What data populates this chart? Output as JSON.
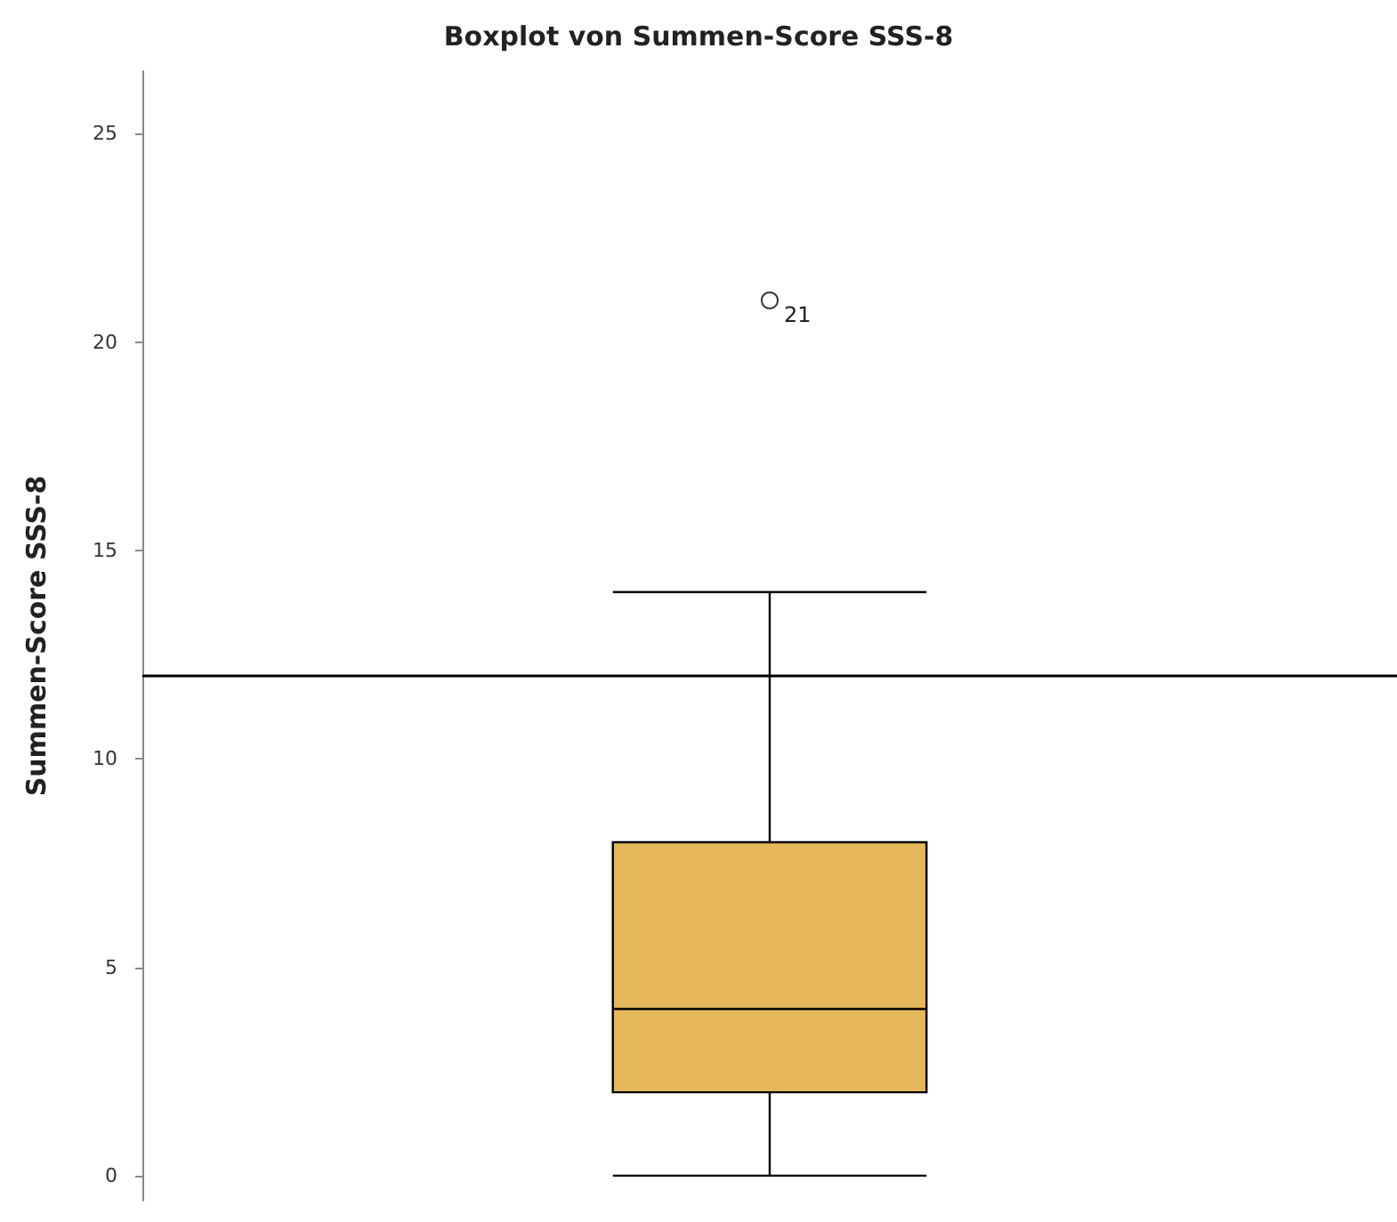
{
  "chart_data": {
    "type": "box",
    "title": "Boxplot von Summen-Score SSS-8",
    "ylabel": "Summen-Score SSS-8",
    "categories": [
      null
    ],
    "boxes": [
      {
        "low": 0,
        "q1": 2,
        "median": 4,
        "q3": 8,
        "high": 14,
        "outliers": [
          21
        ]
      }
    ],
    "color": "#e3b75a",
    "ylim": [
      -0.6,
      26.5
    ],
    "yticks": [
      0,
      5,
      10,
      15,
      20,
      25
    ],
    "grid": false,
    "ref_lines": [
      {
        "axis": "y",
        "value": 12,
        "color": "#000000"
      }
    ],
    "annotations": [
      "21"
    ]
  }
}
